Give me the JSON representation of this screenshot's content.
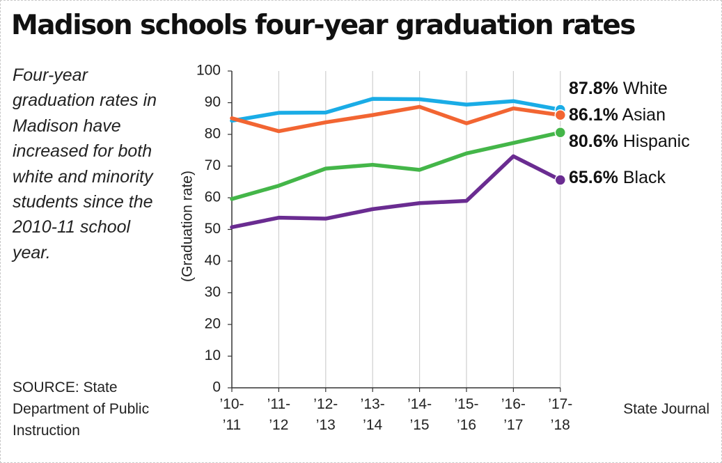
{
  "title": "Madison schools four-year graduation rates",
  "description": "Four-year graduation rates in Madison have increased for both white and minority students since the 2010-11 school year.",
  "source": "SOURCE: State Department of Public Instruction",
  "credit": "State Journal",
  "chart_data": {
    "type": "line",
    "title": "Madison schools four-year graduation rates",
    "xlabel": "",
    "ylabel": "(Graduation rate)",
    "ylim": [
      0,
      100
    ],
    "yticks": [
      0,
      10,
      20,
      30,
      40,
      50,
      60,
      70,
      80,
      90,
      100
    ],
    "categories": [
      [
        "’10-",
        "’11"
      ],
      [
        "’11-",
        "’12"
      ],
      [
        "’12-",
        "’13"
      ],
      [
        "’13-",
        "’14"
      ],
      [
        "’14-",
        "’15"
      ],
      [
        "’15-",
        "’16"
      ],
      [
        "’16-",
        "’17"
      ],
      [
        "’17-",
        "’18"
      ]
    ],
    "grid": "vertical",
    "series": [
      {
        "name": "White",
        "end_label": "87.8%",
        "color": "#1aace6",
        "values": [
          84.3,
          86.8,
          86.9,
          91.2,
          91.1,
          89.4,
          90.5,
          87.8
        ]
      },
      {
        "name": "Asian",
        "end_label": "86.1%",
        "color": "#f26532",
        "values": [
          85.1,
          81.0,
          83.8,
          86.1,
          88.7,
          83.5,
          88.2,
          86.1
        ]
      },
      {
        "name": "Hispanic",
        "end_label": "80.6%",
        "color": "#44b649",
        "values": [
          59.6,
          63.8,
          69.2,
          70.4,
          68.8,
          74.0,
          77.3,
          80.6
        ]
      },
      {
        "name": "Black",
        "end_label": "65.6%",
        "color": "#6a2c91",
        "values": [
          50.7,
          53.7,
          53.4,
          56.4,
          58.3,
          59.0,
          73.1,
          65.6
        ]
      }
    ]
  }
}
